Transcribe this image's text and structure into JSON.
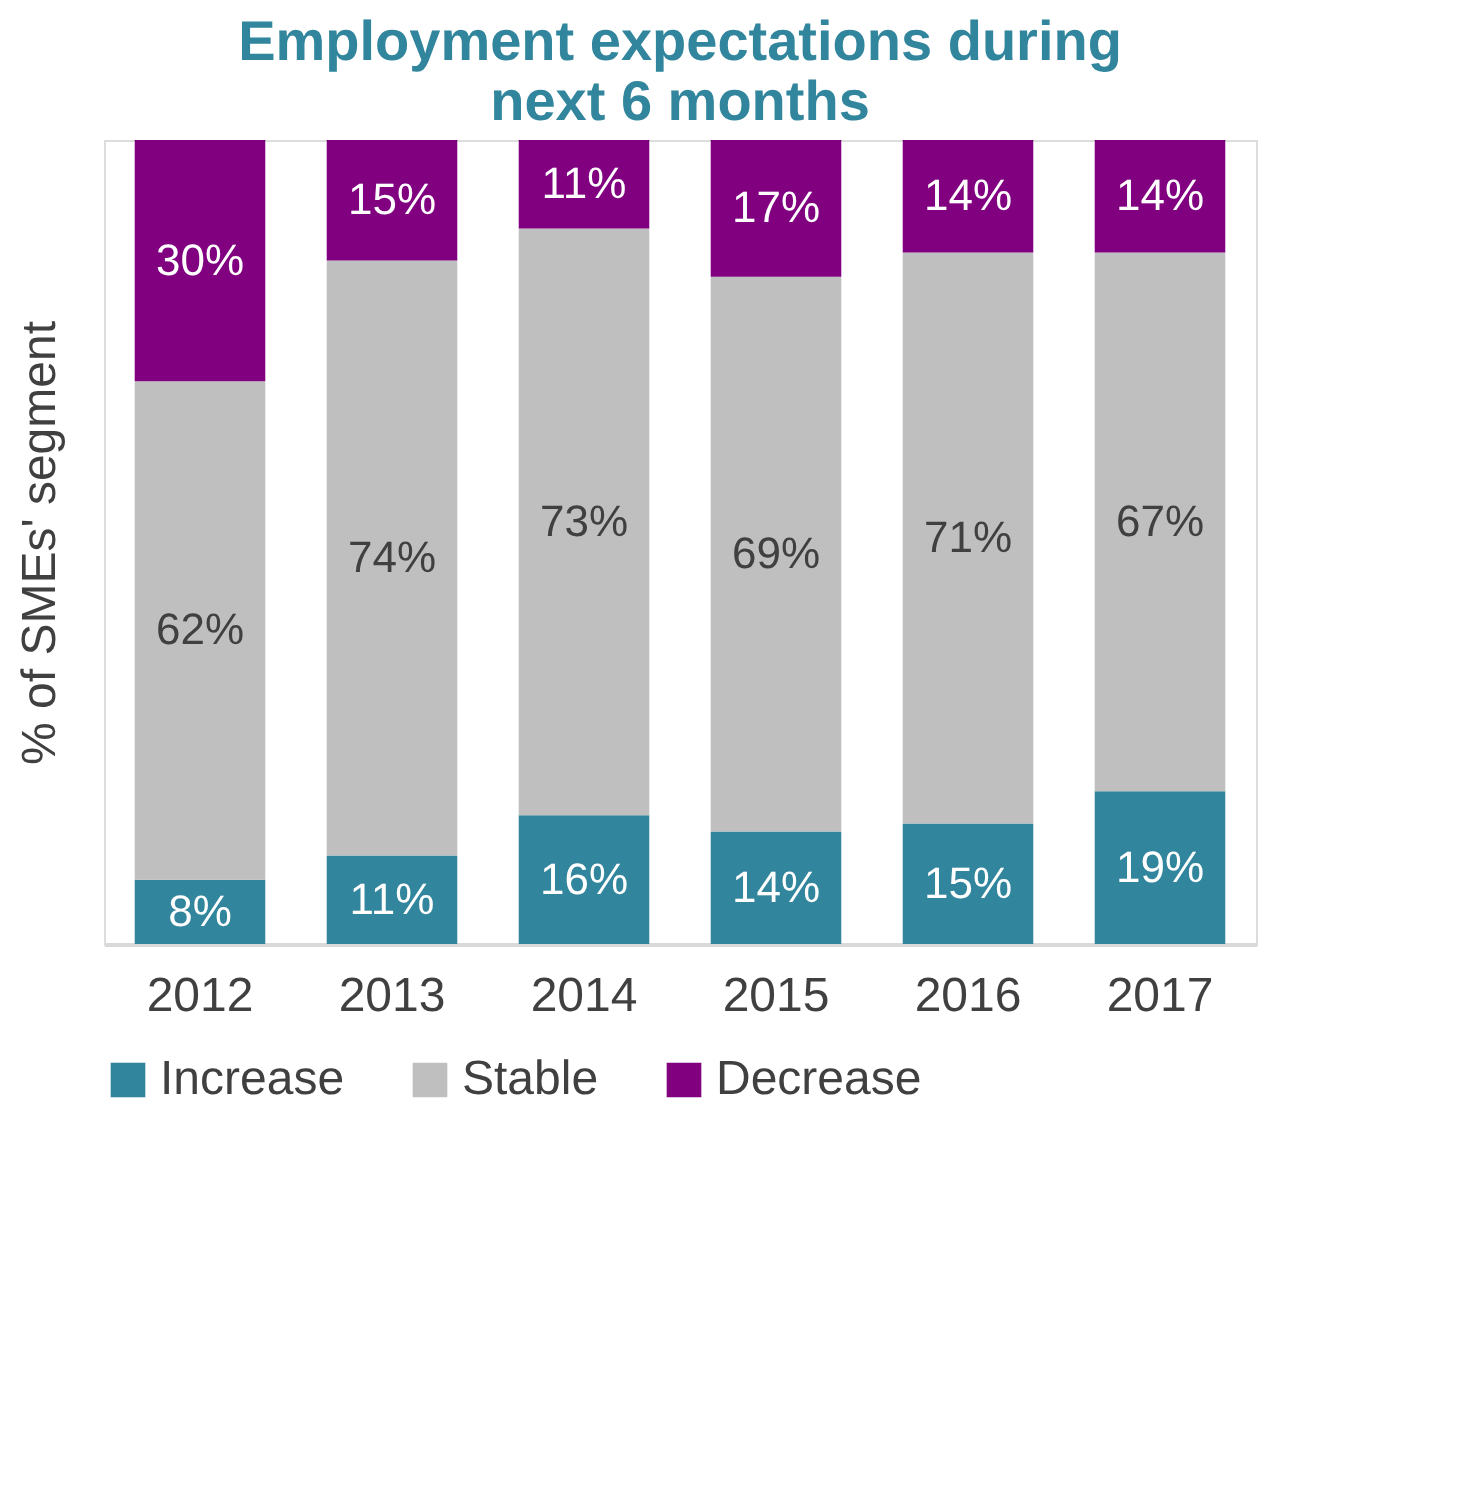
{
  "chart_data": {
    "type": "bar",
    "title": "Employment expectations during next 6 months",
    "ylabel": "% of SMEs' segment",
    "categories": [
      "2012",
      "2013",
      "2014",
      "2015",
      "2016",
      "2017"
    ],
    "stacked": true,
    "legend": "bottom",
    "grid": false,
    "tick_labels": "x",
    "series": [
      {
        "name": "Increase",
        "color": "#31859c",
        "values": [
          8,
          11,
          16,
          14,
          15,
          19
        ],
        "value_labels": [
          "8%",
          "11%",
          "16%",
          "14%",
          "15%",
          "19%"
        ]
      },
      {
        "name": "Stable",
        "color": "#bfbfbf",
        "values": [
          62,
          74,
          73,
          69,
          71,
          67
        ],
        "value_labels": [
          "62%",
          "74%",
          "73%",
          "69%",
          "71%",
          "67%"
        ]
      },
      {
        "name": "Decrease",
        "color": "#800080",
        "values": [
          30,
          15,
          11,
          17,
          14,
          14
        ],
        "value_labels": [
          "30%",
          "15%",
          "11%",
          "17%",
          "14%",
          "14%"
        ]
      }
    ]
  }
}
